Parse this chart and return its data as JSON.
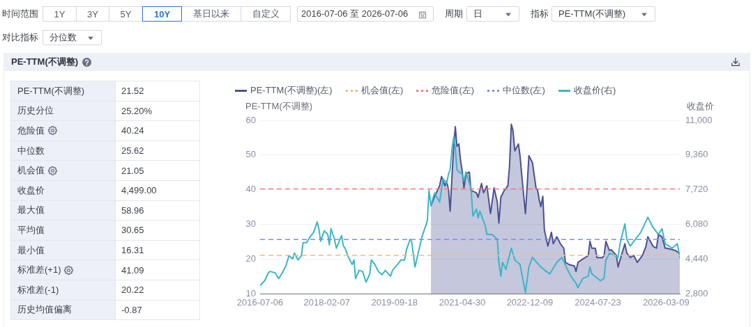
{
  "chart_data": [
    {
      "type": "other",
      "annotations": [
        "时间范围",
        "1Y",
        "3Y",
        "5Y",
        "10Y",
        "基日以来",
        "自定义",
        "2016-07-06 至 2026-07-06",
        "周期",
        "日",
        "指标",
        "PE-TTM(不调整)",
        "对比指标",
        "分位数"
      ]
    },
    {
      "type": "other",
      "title": "PE-TTM(不调整)",
      "annotations": [
        "PE-TTM(不调整)",
        "21.52",
        "历史分位",
        "25.20%",
        "危险值",
        "40.24",
        "中位数",
        "25.62",
        "机会值",
        "21.05",
        "收盘价",
        "4,499.00",
        "最大值",
        "58.96",
        "平均值",
        "30.65",
        "最小值",
        "16.31",
        "标准差(+1)",
        "41.09",
        "标准差(-1)",
        "20.22",
        "历史均值偏离",
        "-0.87"
      ]
    },
    {
      "type": "line",
      "ylabel": "PE-TTM(不调整)",
      "y2label": "收盘价",
      "xlim": [
        "2016-07-06",
        "2026-07-06"
      ],
      "xticks": [
        "2016-07-06",
        "2018-02-07",
        "2019-09-18",
        "2021-04-30",
        "2022-12-09",
        "2024-07-23",
        "2026-03-09"
      ],
      "ylim": [
        10,
        60
      ],
      "yticks": [
        10,
        20,
        30,
        40,
        50,
        60
      ],
      "y2lim": [
        2800,
        11000
      ],
      "y2ticks": [
        {
          "value": 2800,
          "label": "2,800"
        },
        {
          "value": 4440,
          "label": "4,440"
        },
        {
          "value": 6080,
          "label": "6,080"
        },
        {
          "value": 7720,
          "label": "7,720"
        },
        {
          "value": 9360,
          "label": "9,360"
        },
        {
          "value": 11000,
          "label": "11,000"
        }
      ],
      "grid": "y",
      "legend": "top",
      "series": [
        {
          "name": "PE-TTM(不调整)(左)",
          "type": "area",
          "color": "#4a5193",
          "x": [
            "2020-08",
            "2020-09",
            "2020-10-15",
            "2020-11",
            "2020-12",
            "2020-12-15",
            "2021-01",
            "2021-01-15",
            "2021-02",
            "2021-02-15",
            "2021-03",
            "2021-03-15",
            "2021-04",
            "2021-04-15",
            "2021-05",
            "2021-05-15",
            "2021-06",
            "2021-07",
            "2021-07-15",
            "2021-09",
            "2021-09-15",
            "2021-10-15",
            "2021-11",
            "2021-12",
            "2022-01",
            "2022-02",
            "2022-03",
            "2022-03-15",
            "2022-04",
            "2022-05",
            "2022-06",
            "2022-06-15",
            "2022-07",
            "2022-07-15",
            "2022-08",
            "2022-09",
            "2022-09-15",
            "2022-10",
            "2022-11",
            "2022-11-15",
            "2022-12",
            "2023-01",
            "2023-02",
            "2023-02-15",
            "2023-03",
            "2023-03-15",
            "2023-04",
            "2023-04-15",
            "2023-05-15",
            "2023-06-15",
            "2023-07",
            "2023-08",
            "2023-09",
            "2023-10",
            "2023-10-15",
            "2023-11-15",
            "2024-01",
            "2024-01-15",
            "2024-02",
            "2024-03",
            "2024-05",
            "2024-05-15",
            "2024-06",
            "2024-07",
            "2024-07-15",
            "2024-09",
            "2024-09-15",
            "2024-10",
            "2024-11",
            "2024-11-15",
            "2025-01",
            "2025-01-15",
            "2025-02",
            "2025-03-15",
            "2025-04",
            "2025-05",
            "2025-06",
            "2025-07",
            "2025-08-15",
            "2025-09-15",
            "2025-10",
            "2025-11-15",
            "2025-12-15",
            "2026-01",
            "2026-02",
            "2026-03",
            "2026-03-15",
            "2026-05",
            "2026-06",
            "2026-07-06"
          ],
          "values": [
            35.4,
            38.0,
            41.1,
            43.8,
            41.1,
            42.5,
            40.0,
            33.8,
            44.5,
            52.5,
            58.2,
            52.5,
            53.2,
            48.5,
            45.1,
            40.5,
            44.5,
            45.1,
            39.8,
            39.1,
            37.8,
            41.8,
            39.1,
            41.1,
            33.1,
            40.5,
            36.4,
            30.4,
            37.8,
            39.8,
            41.1,
            46.5,
            58.9,
            57.2,
            51.2,
            53.2,
            49.8,
            43.8,
            33.1,
            40.5,
            49.8,
            47.8,
            40.5,
            39.8,
            37.1,
            35.1,
            38.1,
            28.4,
            23.7,
            27.7,
            24.4,
            26.4,
            24.4,
            23.1,
            19.0,
            18.4,
            18.0,
            16.4,
            19.0,
            19.7,
            21.0,
            25.1,
            23.1,
            23.1,
            20.4,
            20.4,
            21.0,
            25.1,
            22.4,
            22.7,
            21.0,
            17.7,
            19.7,
            24.4,
            21.7,
            20.4,
            21.0,
            19.0,
            21.0,
            23.7,
            26.4,
            23.7,
            23.1,
            27.1,
            26.4,
            23.1,
            23.1,
            22.7,
            22.4,
            21.52
          ]
        },
        {
          "name": "收盘价(右)",
          "axis": "y2",
          "color": "#3bb5c9",
          "x": [
            "2016-07-06",
            "2016-08-15",
            "2016-09-15",
            "2016-10",
            "2016-11-15",
            "2016-12-15",
            "2017-01-15",
            "2017-02-15",
            "2017-03-15",
            "2017-04-15",
            "2017-05",
            "2017-06",
            "2017-07",
            "2017-07-15",
            "2017-08-15",
            "2017-09-15",
            "2017-10-15",
            "2017-11-15",
            "2017-12",
            "2017-12-15",
            "2018-01-15",
            "2018-02-15",
            "2018-03",
            "2018-03-15",
            "2018-04-15",
            "2018-05",
            "2018-06-15",
            "2018-07",
            "2018-07-15",
            "2018-08-15",
            "2018-09-15",
            "2018-10",
            "2018-10-15",
            "2018-11-15",
            "2018-12-15",
            "2019-01-15",
            "2019-02-15",
            "2019-03",
            "2019-04",
            "2019-05",
            "2019-06",
            "2019-07",
            "2019-08-15",
            "2019-09",
            "2019-10-15",
            "2019-11-15",
            "2019-12-15",
            "2020-01",
            "2020-02",
            "2020-02-15",
            "2020-03-15",
            "2020-05-15",
            "2020-07",
            "2020-07-15",
            "2020-08",
            "2020-09",
            "2020-10-15",
            "2020-11-15",
            "2020-12-15",
            "2021-01",
            "2021-01-15",
            "2021-02",
            "2021-02-15",
            "2021-03",
            "2021-03-15",
            "2021-04",
            "2021-05",
            "2021-05-15",
            "2021-06",
            "2021-07-15",
            "2021-08",
            "2021-09",
            "2021-09-15",
            "2021-10",
            "2021-11-15",
            "2021-12",
            "2022-01-15",
            "2022-03",
            "2022-03-15",
            "2022-04",
            "2022-04-15",
            "2022-05-15",
            "2022-07",
            "2022-08",
            "2022-09-15",
            "2022-11",
            "2022-12",
            "2023-01",
            "2023-03-15",
            "2023-05",
            "2023-06",
            "2023-08",
            "2023-09-15",
            "2023-11",
            "2023-12",
            "2024-01-15",
            "2024-02",
            "2024-03-15",
            "2024-05",
            "2024-05-15",
            "2024-06",
            "2024-08-15",
            "2024-09-15",
            "2024-10",
            "2024-11",
            "2025-01-15",
            "2025-02",
            "2025-03-15",
            "2025-04",
            "2025-05",
            "2025-07",
            "2025-08",
            "2025-10",
            "2025-11-15",
            "2026-01",
            "2026-02",
            "2026-03",
            "2026-05",
            "2026-06-15",
            "2026-07-06"
          ],
          "values": [
            3180,
            3410,
            3780,
            3850,
            3780,
            3510,
            3780,
            4110,
            4600,
            4440,
            4720,
            4390,
            4600,
            5210,
            5210,
            5490,
            5700,
            6190,
            5820,
            5280,
            5770,
            5600,
            5110,
            5870,
            5370,
            4950,
            5540,
            5050,
            4950,
            4510,
            4180,
            4390,
            3510,
            3900,
            3850,
            3340,
            3730,
            4390,
            4180,
            3850,
            3690,
            3900,
            3620,
            3900,
            4180,
            4390,
            4390,
            4880,
            5370,
            5260,
            4060,
            5490,
            6260,
            7690,
            6970,
            7570,
            7130,
            8230,
            8020,
            8460,
            8670,
            9690,
            10210,
            9660,
            8670,
            8560,
            8460,
            8130,
            8560,
            7800,
            6470,
            6800,
            6380,
            6700,
            6030,
            5600,
            5600,
            5370,
            4280,
            3620,
            4280,
            3950,
            4950,
            4390,
            4180,
            2850,
            4060,
            4510,
            4060,
            3850,
            3730,
            4280,
            4510,
            3950,
            3620,
            3290,
            3080,
            3520,
            3620,
            4060,
            3730,
            3410,
            3520,
            4390,
            4720,
            4510,
            5160,
            6100,
            5370,
            5050,
            5490,
            5700,
            6420,
            5930,
            5600,
            5870,
            5160,
            4950,
            5160,
            4499
          ]
        }
      ],
      "ref_lines": [
        {
          "axis": "y",
          "value": 21.05,
          "label": "机会值(左)",
          "color": "#ffb77a",
          "line_style": "dashed"
        },
        {
          "axis": "y",
          "value": 40.24,
          "label": "危险值(左)",
          "color": "#ff7a7a",
          "line_style": "dashed"
        },
        {
          "axis": "y",
          "value": 25.62,
          "label": "中位数(左)",
          "color": "#7d8cf7",
          "line_style": "dashed"
        }
      ]
    }
  ]
}
